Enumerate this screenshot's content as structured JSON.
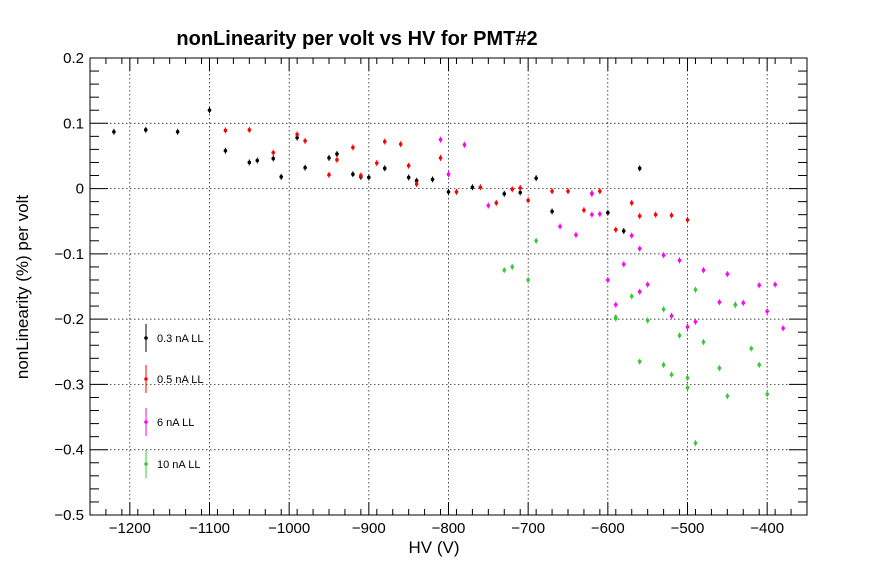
{
  "chart_data": {
    "type": "scatter",
    "title": "nonLinearity per volt vs HV for PMT#2",
    "xlabel": "HV (V)",
    "ylabel": "nonLinearity (%) per volt",
    "xlim": [
      -1250,
      -350
    ],
    "ylim": [
      -0.5,
      0.2
    ],
    "xticks": [
      -1200,
      -1100,
      -1000,
      -900,
      -800,
      -700,
      -600,
      -500,
      -400
    ],
    "xtick_labels": [
      "−1200",
      "−1100",
      "−1000",
      "−900",
      "−800",
      "−700",
      "−600",
      "−500",
      "−400"
    ],
    "yticks": [
      -0.5,
      -0.4,
      -0.3,
      -0.2,
      -0.1,
      0,
      0.1,
      0.2
    ],
    "ytick_labels": [
      "−0.5",
      "−0.4",
      "−0.3",
      "−0.2",
      "−0.1",
      "0",
      "0.1",
      "0.2"
    ],
    "grid": true,
    "legend_position": "bottom-left",
    "series": [
      {
        "name": "0.3 nA LL",
        "color": "#000000",
        "points": [
          [
            -1220,
            0.087
          ],
          [
            -1180,
            0.09
          ],
          [
            -1140,
            0.087
          ],
          [
            -1100,
            0.12
          ],
          [
            -1080,
            0.058
          ],
          [
            -1050,
            0.04
          ],
          [
            -1040,
            0.043
          ],
          [
            -1020,
            0.046
          ],
          [
            -1010,
            0.018
          ],
          [
            -990,
            0.078
          ],
          [
            -980,
            0.032
          ],
          [
            -950,
            0.047
          ],
          [
            -940,
            0.053
          ],
          [
            -920,
            0.022
          ],
          [
            -910,
            0.018
          ],
          [
            -900,
            0.017
          ],
          [
            -880,
            0.031
          ],
          [
            -850,
            0.017
          ],
          [
            -840,
            0.012
          ],
          [
            -820,
            0.014
          ],
          [
            -800,
            -0.005
          ],
          [
            -770,
            0.002
          ],
          [
            -730,
            -0.008
          ],
          [
            -710,
            -0.006
          ],
          [
            -690,
            0.016
          ],
          [
            -670,
            -0.035
          ],
          [
            -580,
            -0.065
          ],
          [
            -600,
            -0.037
          ],
          [
            -560,
            0.031
          ]
        ]
      },
      {
        "name": "0.5 nA LL",
        "color": "#ff0000",
        "points": [
          [
            -1080,
            0.089
          ],
          [
            -1050,
            0.09
          ],
          [
            -1020,
            0.055
          ],
          [
            -990,
            0.083
          ],
          [
            -980,
            0.073
          ],
          [
            -950,
            0.021
          ],
          [
            -940,
            0.044
          ],
          [
            -920,
            0.063
          ],
          [
            -910,
            0.02
          ],
          [
            -890,
            0.039
          ],
          [
            -880,
            0.072
          ],
          [
            -860,
            0.068
          ],
          [
            -850,
            0.035
          ],
          [
            -840,
            0.007
          ],
          [
            -810,
            0.047
          ],
          [
            -790,
            -0.005
          ],
          [
            -760,
            0.002
          ],
          [
            -740,
            -0.022
          ],
          [
            -720,
            -0.001
          ],
          [
            -710,
            0.001
          ],
          [
            -700,
            -0.018
          ],
          [
            -670,
            -0.004
          ],
          [
            -650,
            -0.004
          ],
          [
            -630,
            -0.033
          ],
          [
            -620,
            -0.008
          ],
          [
            -610,
            -0.004
          ],
          [
            -590,
            -0.063
          ],
          [
            -570,
            -0.022
          ],
          [
            -560,
            -0.042
          ],
          [
            -540,
            -0.04
          ],
          [
            -520,
            -0.041
          ],
          [
            -500,
            -0.048
          ]
        ]
      },
      {
        "name": "6 nA LL",
        "color": "#ff00ff",
        "points": [
          [
            -810,
            0.075
          ],
          [
            -800,
            0.022
          ],
          [
            -780,
            0.067
          ],
          [
            -750,
            -0.026
          ],
          [
            -660,
            -0.058
          ],
          [
            -640,
            -0.071
          ],
          [
            -620,
            -0.04
          ],
          [
            -620,
            -0.007
          ],
          [
            -610,
            -0.039
          ],
          [
            -600,
            -0.14
          ],
          [
            -590,
            -0.178
          ],
          [
            -580,
            -0.116
          ],
          [
            -570,
            -0.072
          ],
          [
            -560,
            -0.092
          ],
          [
            -560,
            -0.158
          ],
          [
            -550,
            -0.147
          ],
          [
            -530,
            -0.102
          ],
          [
            -520,
            -0.195
          ],
          [
            -510,
            -0.11
          ],
          [
            -490,
            -0.204
          ],
          [
            -500,
            -0.212
          ],
          [
            -480,
            -0.125
          ],
          [
            -460,
            -0.174
          ],
          [
            -450,
            -0.131
          ],
          [
            -440,
            -0.178
          ],
          [
            -430,
            -0.175
          ],
          [
            -410,
            -0.148
          ],
          [
            -400,
            -0.188
          ],
          [
            -390,
            -0.147
          ],
          [
            -380,
            -0.214
          ]
        ]
      },
      {
        "name": "10 nA LL",
        "color": "#33cc33",
        "points": [
          [
            -730,
            -0.125
          ],
          [
            -720,
            -0.12
          ],
          [
            -700,
            -0.14
          ],
          [
            -690,
            -0.08
          ],
          [
            -590,
            -0.199
          ],
          [
            -590,
            -0.197
          ],
          [
            -570,
            -0.165
          ],
          [
            -560,
            -0.265
          ],
          [
            -550,
            -0.202
          ],
          [
            -530,
            -0.27
          ],
          [
            -520,
            -0.285
          ],
          [
            -510,
            -0.225
          ],
          [
            -500,
            -0.29
          ],
          [
            -490,
            -0.155
          ],
          [
            -490,
            -0.39
          ],
          [
            -480,
            -0.235
          ],
          [
            -460,
            -0.275
          ],
          [
            -450,
            -0.318
          ],
          [
            -440,
            -0.178
          ],
          [
            -420,
            -0.245
          ],
          [
            -410,
            -0.27
          ],
          [
            -400,
            -0.315
          ],
          [
            -530,
            -0.185
          ],
          [
            -500,
            -0.305
          ]
        ]
      }
    ]
  }
}
